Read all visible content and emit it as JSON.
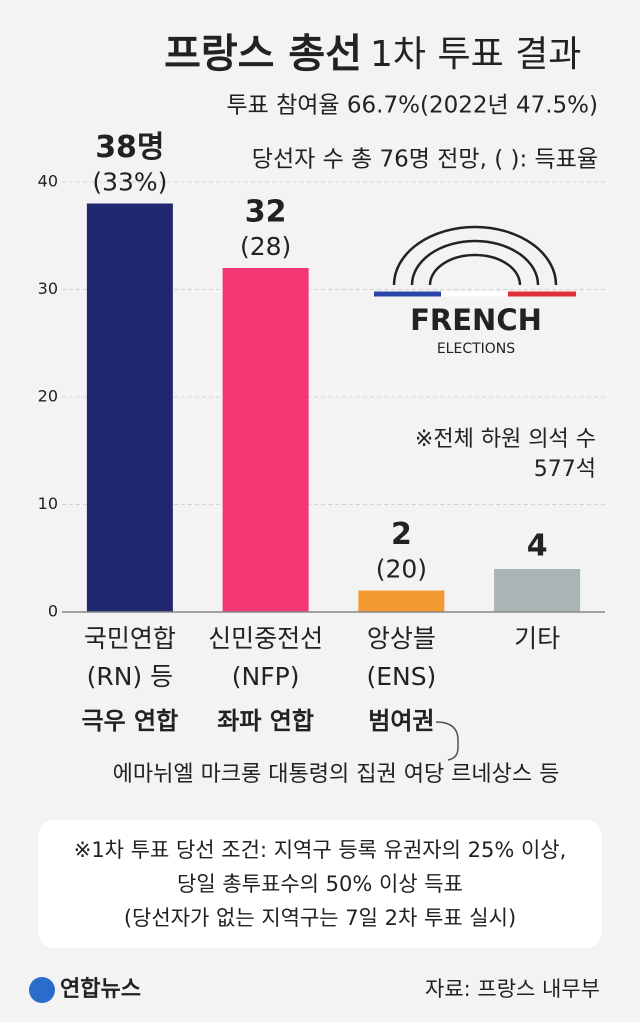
{
  "chart_data": {
    "type": "bar",
    "title": "프랑스 총선",
    "title_suffix": "1차 투표 결과",
    "subtitle": "투표 참여율 66.7%(2022년 47.5%)",
    "legend_note": "당선자 수 총 76명 전망, ( ): 득표율",
    "categories": [
      [
        "국민연합",
        "(RN) 등"
      ],
      [
        "신민중전선",
        "(NFP)"
      ],
      [
        "앙상블",
        "(ENS)"
      ],
      [
        "기타"
      ]
    ],
    "values": [
      38,
      32,
      2,
      4
    ],
    "value_labels": [
      "38명",
      "32",
      "2",
      "4"
    ],
    "vote_share_labels": [
      "(33%)",
      "(28)",
      "(20)",
      null
    ],
    "alliances": [
      "극우 연합",
      "좌파 연합",
      "범여권",
      null
    ],
    "alliance_note": "에마뉘엘 마크롱 대통령의 집권 여당 르네상스 등",
    "colors": [
      "#1f2770",
      "#f23773",
      "#f39a33",
      "#a9b4b4"
    ],
    "ylim": [
      0,
      40
    ],
    "yticks": [
      0,
      10,
      20,
      30,
      40
    ],
    "grid": true,
    "seat_note": [
      "※전체 하원 의석 수",
      "577석"
    ],
    "logo": [
      "FRENCH",
      "ELECTIONS"
    ],
    "footnote": [
      "※1차 투표 당선 조건: 지역구 등록 유권자의 25% 이상,",
      "당일 총투표수의 50% 이상 득표",
      "(당선자가 없는 지역구는 7일 2차 투표 실시)"
    ],
    "agency": "연합뉴스",
    "source": "자료: 프랑스 내무부"
  }
}
